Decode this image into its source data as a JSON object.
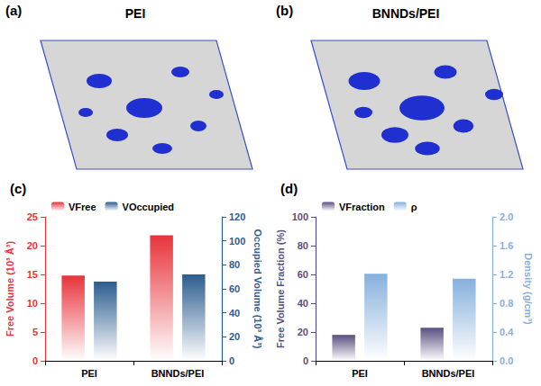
{
  "images": [
    {
      "panel_label": "(a)",
      "title": "PEI"
    },
    {
      "panel_label": "(b)",
      "title": "BNNDs/PEI"
    }
  ],
  "chart_data": [
    {
      "type": "bar",
      "panel_label": "(c)",
      "categories": [
        "PEI",
        "BNNDs/PEI"
      ],
      "series": [
        {
          "name": "VFree",
          "color": "#e8333b",
          "values": [
            14.8,
            21.8
          ]
        },
        {
          "name": "VOccupied",
          "color": "#2c5d8f",
          "values": [
            66,
            72
          ],
          "axis": "y2"
        }
      ],
      "ylabel": "Free Volume (10³ Å³)",
      "y2label": "Occupied Volume (10³ Å³)",
      "ylim": [
        0,
        25
      ],
      "yticks": [
        0,
        5,
        10,
        15,
        20,
        25
      ],
      "y2lim": [
        0,
        120
      ],
      "y2ticks": [
        0,
        20,
        40,
        60,
        80,
        100,
        120
      ],
      "legend": "top",
      "grid": false
    },
    {
      "type": "bar",
      "panel_label": "(d)",
      "categories": [
        "PEI",
        "BNNDs/PEI"
      ],
      "series": [
        {
          "name": "VFraction",
          "color": "#5a4f80",
          "values": [
            18,
            23
          ]
        },
        {
          "name": "ρ",
          "color": "#86b0dc",
          "values": [
            1.21,
            1.14
          ],
          "axis": "y2"
        }
      ],
      "ylabel": "Free Volume Fraction (%)",
      "y2label": "Density (g/cm³)",
      "ylim": [
        0,
        100
      ],
      "yticks": [
        0,
        20,
        40,
        60,
        80,
        100
      ],
      "y2lim": [
        0,
        2.0
      ],
      "y2ticks": [
        {
          "value": 0,
          "label": "0.0"
        },
        0.4,
        0.8,
        1.2,
        1.6,
        {
          "value": 2,
          "label": "2.0"
        }
      ],
      "legend": "top",
      "grid": false
    }
  ]
}
